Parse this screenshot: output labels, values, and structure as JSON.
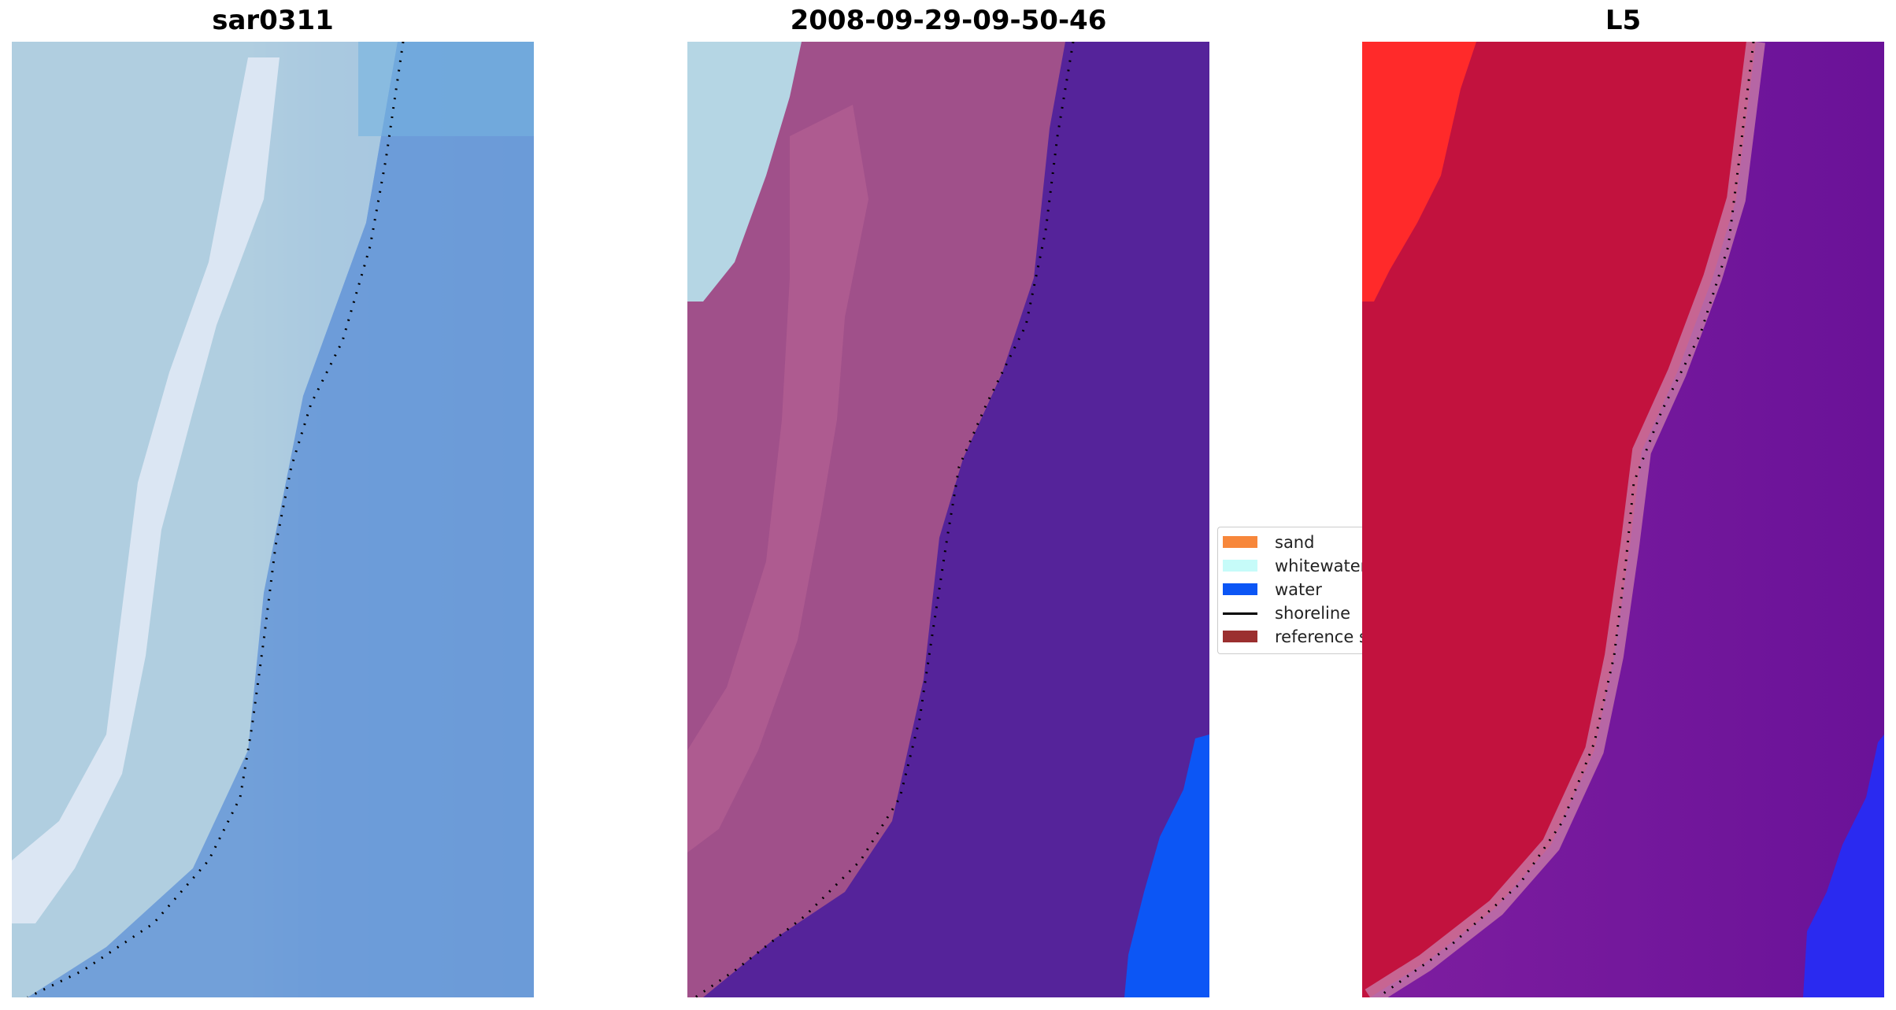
{
  "panels": [
    {
      "title": "sar0311"
    },
    {
      "title": "2008-09-29-09-50-46"
    },
    {
      "title": "L5"
    }
  ],
  "legend": {
    "items": [
      {
        "label": "sand",
        "color": "#f7873b",
        "kind": "patch"
      },
      {
        "label": "whitewater",
        "color": "#c6fbf9",
        "kind": "patch"
      },
      {
        "label": "water",
        "color": "#0c56f5",
        "kind": "patch"
      },
      {
        "label": "shoreline",
        "color": "#000000",
        "kind": "line"
      },
      {
        "label": "reference shoreline buffer",
        "color": "#9b2f2f",
        "kind": "patch"
      }
    ]
  },
  "colors": {
    "sar_water": "#6d9bd6",
    "sar_beach": "#aecbe0",
    "sar_foam": "#e8eef8",
    "class_land": "#a0508a",
    "class_land_light": "#b86294",
    "class_whitewater": "#b5d6e4",
    "class_sea": "#55239a",
    "class_water": "#0c56f5",
    "l5_land": "#c2123e",
    "l5_red": "#ff2a2a",
    "l5_sea": "#6a1a9a",
    "l5_shore_band": "#c87aa8",
    "l5_blue": "#2a2af0",
    "shoreline_dot": "#000000"
  }
}
